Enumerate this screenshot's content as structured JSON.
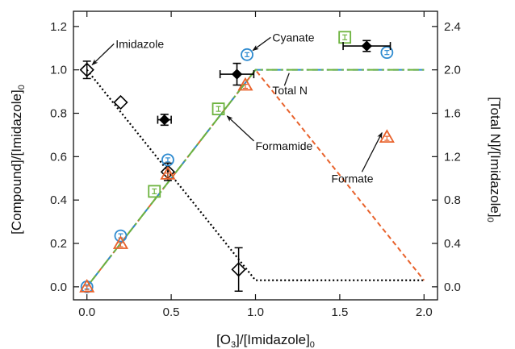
{
  "chart_data": {
    "type": "scatter",
    "xlabel": {
      "main": "[O",
      "sub1": "3",
      "mid": "]/[Imidazole]",
      "sub2": "0"
    },
    "ylabel_left": {
      "main": "[Compound]/[Imidazole]",
      "sub": "0"
    },
    "ylabel_right": {
      "main": "[Total N]/[Imidazole]",
      "sub": "0"
    },
    "xlim": [
      -0.08,
      2.08
    ],
    "ylim_left": [
      -0.06,
      1.27
    ],
    "ylim_right": [
      -0.12,
      2.54
    ],
    "x_ticks": [
      "0.0",
      "0.5",
      "1.0",
      "1.5",
      "2.0"
    ],
    "y_left_ticks": [
      "0.0",
      "0.2",
      "0.4",
      "0.6",
      "0.8",
      "1.0",
      "1.2"
    ],
    "y_right_ticks": [
      "0.0",
      "0.4",
      "0.8",
      "1.2",
      "1.6",
      "2.0",
      "2.4"
    ],
    "colors": {
      "imidazole": "#000000",
      "cyanate": "#2e8bd0",
      "formamide": "#6db33f",
      "formate": "#e8622c",
      "total_n": "#000000"
    },
    "series": [
      {
        "key": "imidazole",
        "marker": "diamond-open",
        "points": [
          {
            "x": 0.0,
            "y": 1.0,
            "err": 0.04
          },
          {
            "x": 0.2,
            "y": 0.85
          },
          {
            "x": 0.48,
            "y": 0.53,
            "err": 0.04
          },
          {
            "x": 0.9,
            "y": 0.08,
            "err": 0.1
          }
        ]
      },
      {
        "key": "cyanate",
        "marker": "circle-open",
        "points": [
          {
            "x": 0.0,
            "y": 0.0
          },
          {
            "x": 0.2,
            "y": 0.235
          },
          {
            "x": 0.48,
            "y": 0.585
          },
          {
            "x": 0.95,
            "y": 1.07
          },
          {
            "x": 1.78,
            "y": 1.08
          }
        ]
      },
      {
        "key": "formamide",
        "marker": "square-open",
        "points": [
          {
            "x": 0.4,
            "y": 0.44
          },
          {
            "x": 0.78,
            "y": 0.82
          },
          {
            "x": 1.53,
            "y": 1.15
          }
        ]
      },
      {
        "key": "formate",
        "marker": "triangle-open",
        "points": [
          {
            "x": 0.0,
            "y": 0.0
          },
          {
            "x": 0.2,
            "y": 0.2
          },
          {
            "x": 0.48,
            "y": 0.52
          },
          {
            "x": 0.94,
            "y": 0.93
          },
          {
            "x": 1.78,
            "y": 0.69
          }
        ]
      },
      {
        "key": "total_n",
        "marker": "diamond-filled",
        "axis": "right",
        "points": [
          {
            "x": 0.46,
            "y": 1.54,
            "xerr": 0.04,
            "yerr": 0.05
          },
          {
            "x": 0.89,
            "y": 1.96,
            "xerr": 0.1,
            "yerr": 0.1
          },
          {
            "x": 1.66,
            "y": 2.22,
            "xerr": 0.14,
            "yerr": 0.05
          }
        ]
      }
    ],
    "model_lines": [
      {
        "key": "imidazole",
        "style": "dotted",
        "points": [
          [
            0,
            1.0
          ],
          [
            1.0,
            0.03
          ],
          [
            2.0,
            0.03
          ]
        ]
      },
      {
        "key": "formate",
        "style": "dashed",
        "points": [
          [
            0,
            0
          ],
          [
            1.0,
            1.0
          ],
          [
            2.0,
            0.03
          ]
        ]
      },
      {
        "key": "cyanate",
        "style": "dashdot",
        "points": [
          [
            0,
            0
          ],
          [
            1.0,
            1.0
          ],
          [
            2.0,
            1.0
          ]
        ]
      },
      {
        "key": "formamide",
        "style": "dashdot",
        "points": [
          [
            0,
            0
          ],
          [
            1.0,
            1.0
          ],
          [
            2.0,
            1.0
          ]
        ]
      }
    ],
    "annotations": [
      {
        "text": "Imidazole",
        "point": [
          0.0,
          1.0
        ],
        "label_at": [
          0.17,
          1.12
        ]
      },
      {
        "text": "Cyanate",
        "point": [
          0.95,
          1.07
        ],
        "label_at": [
          1.1,
          1.15
        ]
      },
      {
        "text": "Formamide",
        "point": [
          0.8,
          0.81
        ],
        "label_at": [
          1.0,
          0.65
        ]
      },
      {
        "text": "Formate",
        "point": [
          1.77,
          0.74
        ],
        "label_at": [
          1.45,
          0.5
        ]
      },
      {
        "text": "Total N",
        "point": [
          1.2,
          1.0
        ],
        "label_at": [
          1.1,
          0.905
        ]
      }
    ]
  }
}
